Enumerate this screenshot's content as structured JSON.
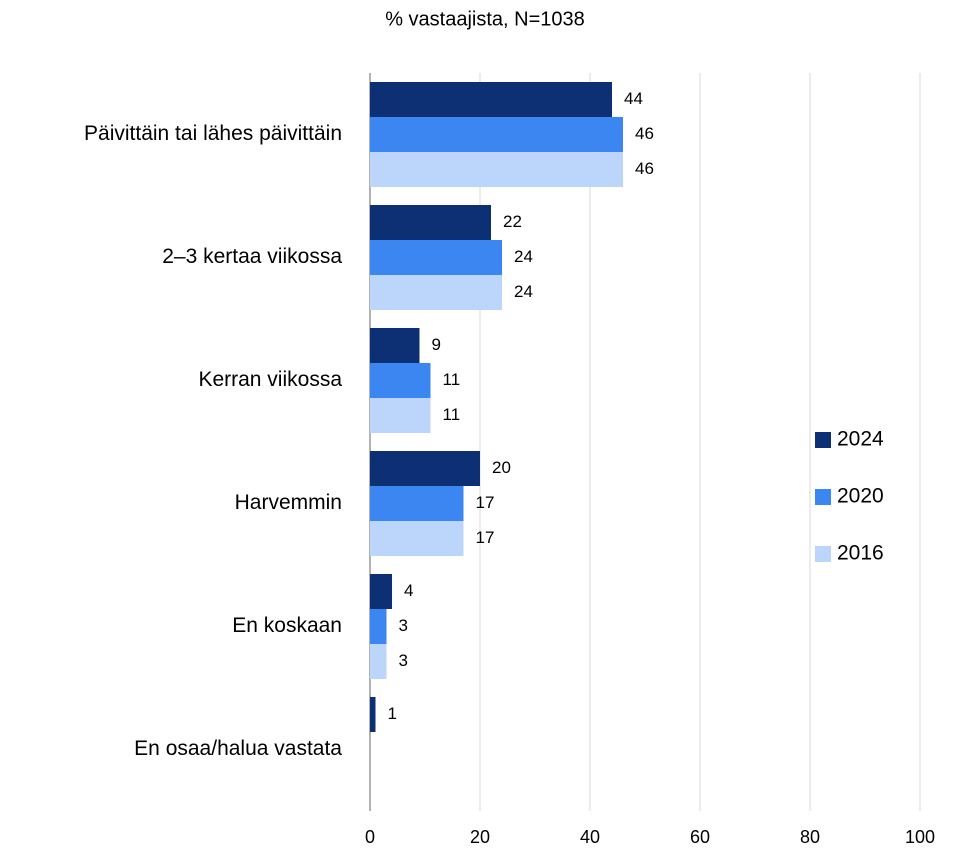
{
  "chart_data": {
    "type": "hbar",
    "title": "% vastaajista, N=1038",
    "categories": [
      "Päivittäin tai lähes päivittäin",
      "2–3 kertaa viikossa",
      "Kerran viikossa",
      "Harvemmin",
      "En koskaan",
      "En osaa/halua vastata"
    ],
    "series": [
      {
        "name": "2024",
        "color": "#0d2f74",
        "values": [
          44,
          22,
          9,
          20,
          4,
          1
        ]
      },
      {
        "name": "2020",
        "color": "#3b86f0",
        "values": [
          46,
          24,
          11,
          17,
          3,
          null
        ]
      },
      {
        "name": "2016",
        "color": "#bcd5fa",
        "values": [
          46,
          24,
          11,
          17,
          3,
          null
        ]
      }
    ],
    "xlim": [
      0,
      100
    ],
    "xticks": [
      0,
      20,
      40,
      60,
      80,
      100
    ],
    "grid": true,
    "legend": "right"
  }
}
